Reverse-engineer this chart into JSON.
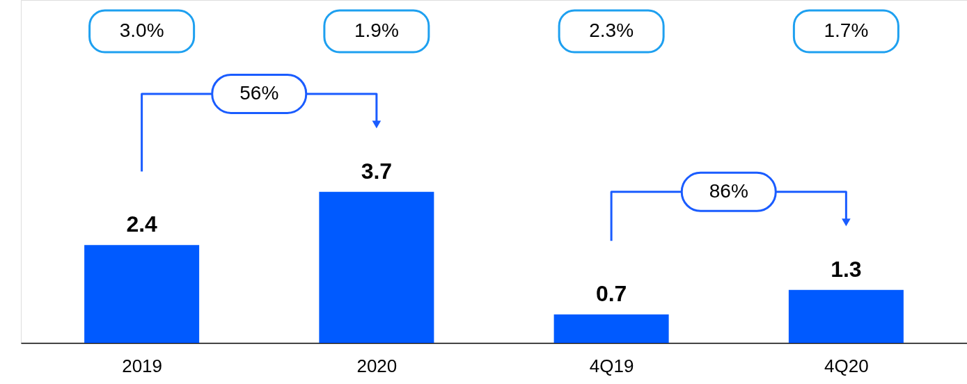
{
  "chart_data": {
    "type": "bar",
    "categories": [
      "2019",
      "2020",
      "4Q19",
      "4Q20"
    ],
    "values": [
      2.4,
      3.7,
      0.7,
      1.3
    ],
    "color": "#005aff",
    "data_labels": true,
    "annotations": [
      "3.0%",
      "1.9%",
      "2.3%",
      "1.7%",
      "56%",
      "86%"
    ]
  }
}
